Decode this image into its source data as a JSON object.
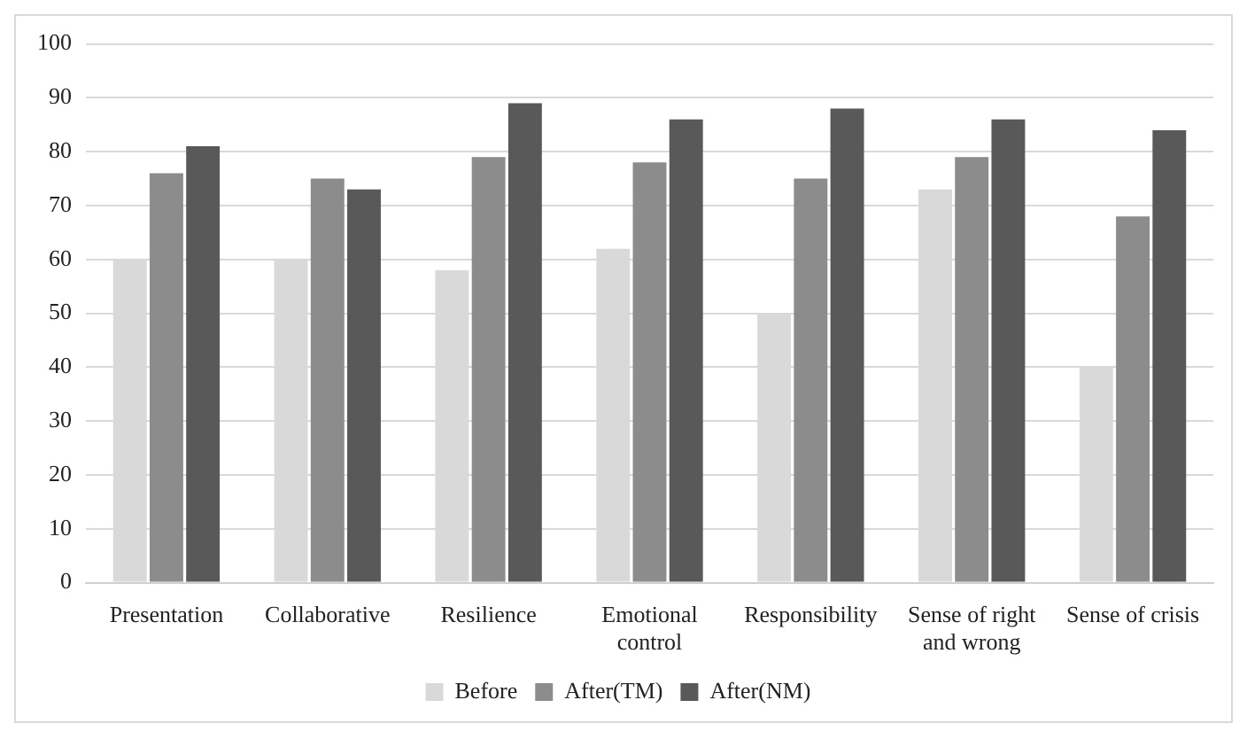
{
  "chart_data": {
    "type": "bar",
    "categories": [
      "Presentation",
      "Collaborative",
      "Resilience",
      "Emotional control",
      "Responsibility",
      "Sense of right and wrong",
      "Sense of crisis"
    ],
    "series": [
      {
        "name": "Before",
        "color": "#d9d9d9",
        "values": [
          60,
          60,
          58,
          62,
          50,
          73,
          40
        ]
      },
      {
        "name": "After(TM)",
        "color": "#8c8c8c",
        "values": [
          76,
          75,
          79,
          78,
          75,
          79,
          68
        ]
      },
      {
        "name": "After(NM)",
        "color": "#595959",
        "values": [
          81,
          73,
          89,
          86,
          88,
          86,
          84
        ]
      }
    ],
    "ylim": [
      0,
      100
    ],
    "yticks": [
      0,
      10,
      20,
      30,
      40,
      50,
      60,
      70,
      80,
      90,
      100
    ],
    "grid": "y",
    "legend": "bottom"
  }
}
